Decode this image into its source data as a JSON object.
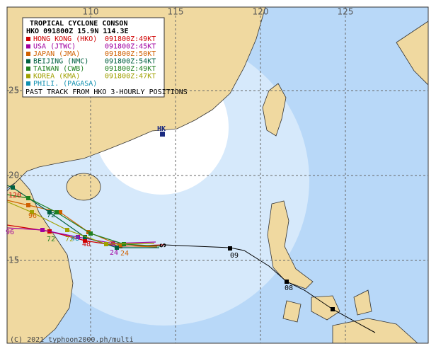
{
  "map": {
    "lon_labels": [
      "110",
      "115",
      "120",
      "125"
    ],
    "lat_labels": [
      "25",
      "20",
      "15"
    ],
    "legend": {
      "title": "TROPICAL CYCLONE CONSON",
      "position": "HKO 091800Z 15.9N 114.3E",
      "agencies": [
        {
          "name": "HONG KONG (HKO)",
          "forecast": "091800Z:49KT",
          "color": "#d00000"
        },
        {
          "name": "USA (JTWC)",
          "forecast": "091800Z:45KT",
          "color": "#a000a0"
        },
        {
          "name": "JAPAN (JMA)",
          "forecast": "091800Z:50KT",
          "color": "#d06000"
        },
        {
          "name": "BEIJING (NMC)",
          "forecast": "091800Z:54KT",
          "color": "#006040"
        },
        {
          "name": "TAIWAN (CWB)",
          "forecast": "091800Z:49KT",
          "color": "#208020"
        },
        {
          "name": "KOREA (KMA)",
          "forecast": "091800Z:47KT",
          "color": "#a0a000"
        },
        {
          "name": "PHILI. (PAGASA)",
          "color": "#1090b0"
        }
      ],
      "note": "PAST TRACK FROM HKO 3-HOURLY POSITIONS"
    },
    "place_label": "HK",
    "past_track_labels": [
      "09",
      "08"
    ],
    "forecast_labels": [
      "120",
      "96",
      "96",
      "72",
      "72",
      "72",
      "48",
      "48",
      "24",
      "24"
    ],
    "credit": "(C) 2021 typhoon2000.ph/multi"
  }
}
